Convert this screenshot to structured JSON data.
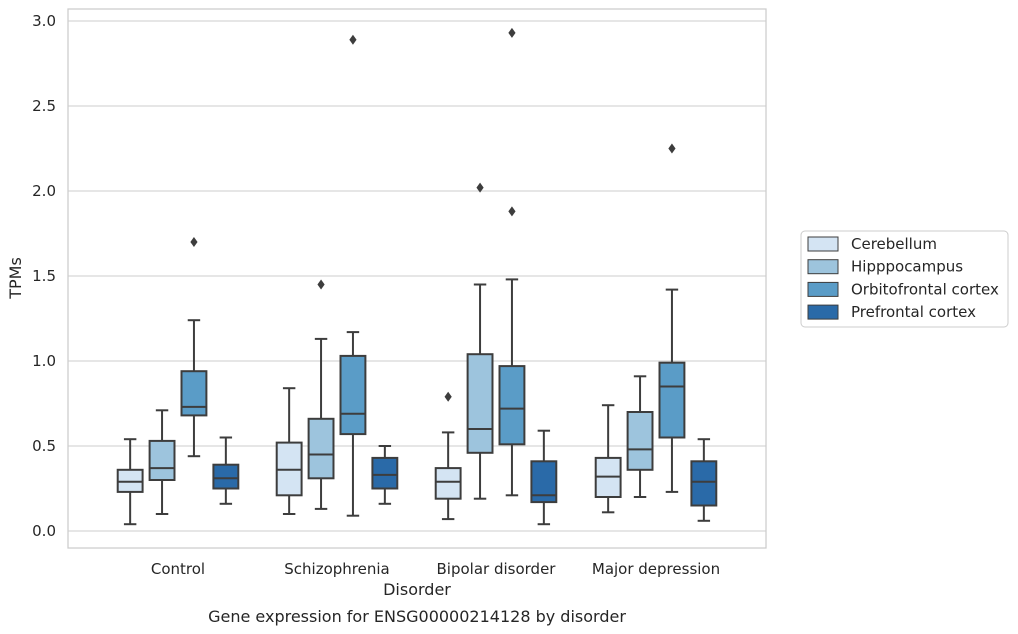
{
  "chart_data": {
    "type": "box",
    "title": "Gene expression for ENSG00000214128 by disorder",
    "xlabel": "Disorder",
    "ylabel": "TPMs",
    "ylim": [
      -0.1,
      3.07
    ],
    "yticks": [
      0.0,
      0.5,
      1.0,
      1.5,
      2.0,
      2.5,
      3.0
    ],
    "ytick_labels": [
      "0.0",
      "0.5",
      "1.0",
      "1.5",
      "2.0",
      "2.5",
      "3.0"
    ],
    "grid": true,
    "legend_position": "right-center",
    "categories": [
      "Control",
      "Schizophrenia",
      "Bipolar disorder",
      "Major depression"
    ],
    "series": [
      {
        "name": "Cerebellum",
        "color": "#d4e4f3",
        "boxes": [
          {
            "whislo": 0.04,
            "q1": 0.23,
            "med": 0.29,
            "q3": 0.36,
            "whishi": 0.54,
            "fliers": []
          },
          {
            "whislo": 0.1,
            "q1": 0.21,
            "med": 0.36,
            "q3": 0.52,
            "whishi": 0.84,
            "fliers": []
          },
          {
            "whislo": 0.07,
            "q1": 0.19,
            "med": 0.29,
            "q3": 0.37,
            "whishi": 0.58,
            "fliers": [
              0.79
            ]
          },
          {
            "whislo": 0.11,
            "q1": 0.2,
            "med": 0.32,
            "q3": 0.43,
            "whishi": 0.74,
            "fliers": []
          }
        ]
      },
      {
        "name": "Hipppocampus",
        "color": "#9dc4dd",
        "boxes": [
          {
            "whislo": 0.1,
            "q1": 0.3,
            "med": 0.37,
            "q3": 0.53,
            "whishi": 0.71,
            "fliers": []
          },
          {
            "whislo": 0.13,
            "q1": 0.31,
            "med": 0.45,
            "q3": 0.66,
            "whishi": 1.13,
            "fliers": [
              1.45
            ]
          },
          {
            "whislo": 0.19,
            "q1": 0.46,
            "med": 0.6,
            "q3": 1.04,
            "whishi": 1.45,
            "fliers": [
              2.02
            ]
          },
          {
            "whislo": 0.2,
            "q1": 0.36,
            "med": 0.48,
            "q3": 0.7,
            "whishi": 0.91,
            "fliers": []
          }
        ]
      },
      {
        "name": "Orbitofrontal cortex",
        "color": "#5a9cc7",
        "boxes": [
          {
            "whislo": 0.44,
            "q1": 0.68,
            "med": 0.73,
            "q3": 0.94,
            "whishi": 1.24,
            "fliers": [
              1.7
            ]
          },
          {
            "whislo": 0.09,
            "q1": 0.57,
            "med": 0.69,
            "q3": 1.03,
            "whishi": 1.17,
            "fliers": [
              2.89
            ]
          },
          {
            "whislo": 0.21,
            "q1": 0.51,
            "med": 0.72,
            "q3": 0.97,
            "whishi": 1.48,
            "fliers": [
              1.88,
              2.93
            ]
          },
          {
            "whislo": 0.23,
            "q1": 0.55,
            "med": 0.85,
            "q3": 0.99,
            "whishi": 1.42,
            "fliers": [
              2.25
            ]
          }
        ]
      },
      {
        "name": "Prefrontal cortex",
        "color": "#2a6aa8",
        "boxes": [
          {
            "whislo": 0.16,
            "q1": 0.25,
            "med": 0.31,
            "q3": 0.39,
            "whishi": 0.55,
            "fliers": []
          },
          {
            "whislo": 0.16,
            "q1": 0.25,
            "med": 0.33,
            "q3": 0.43,
            "whishi": 0.5,
            "fliers": []
          },
          {
            "whislo": 0.04,
            "q1": 0.17,
            "med": 0.21,
            "q3": 0.41,
            "whishi": 0.59,
            "fliers": []
          },
          {
            "whislo": 0.06,
            "q1": 0.15,
            "med": 0.29,
            "q3": 0.41,
            "whishi": 0.54,
            "fliers": []
          }
        ]
      }
    ]
  }
}
